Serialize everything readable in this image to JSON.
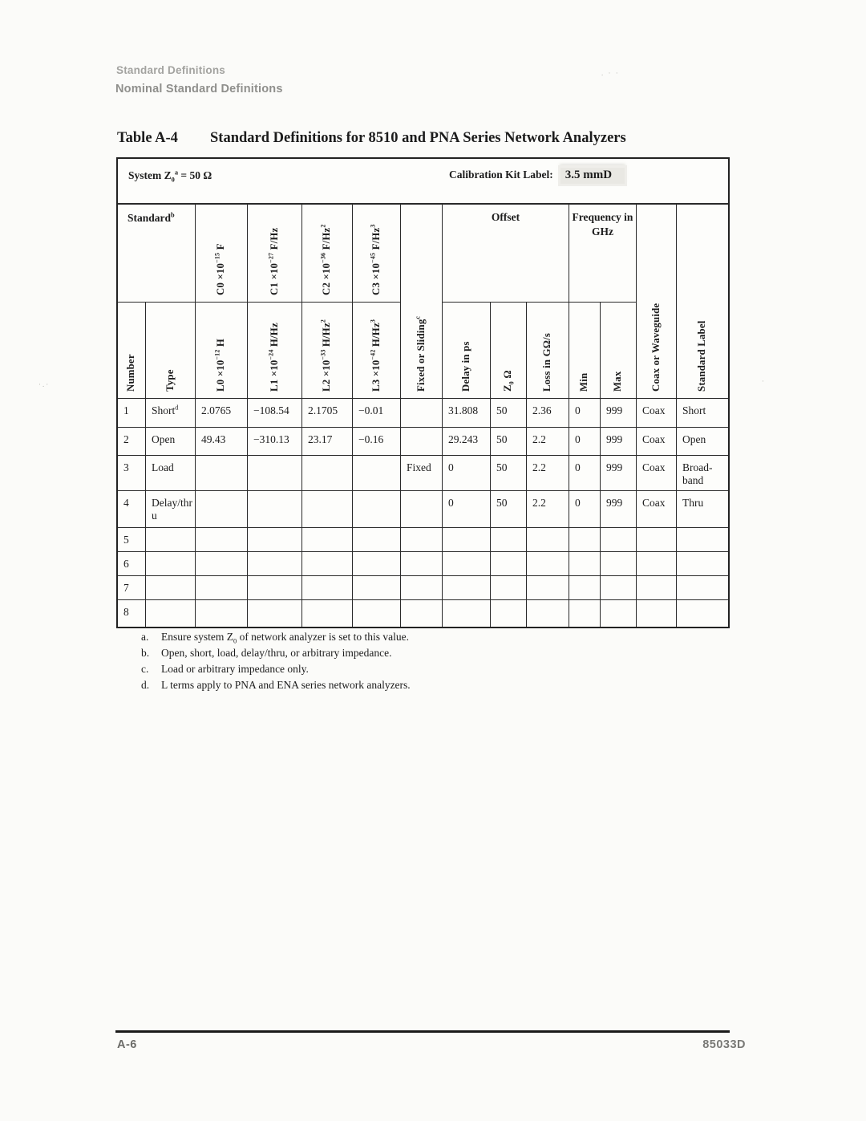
{
  "page": {
    "header_line1": "Standard Definitions",
    "header_line2": "Nominal Standard Definitions",
    "table_number": "Table A-4",
    "table_title": "Standard Definitions for 8510 and PNA Series Network Analyzers",
    "footer_left": "A-6",
    "footer_right": "85033D"
  },
  "table": {
    "system_z0": "System Z_{0}^{a} = 50 Ω",
    "calibration_kit_label": "Calibration Kit Label:",
    "calibration_kit_value": "3.5 mmD",
    "header": {
      "standard": "Standard^{b}",
      "number": "Number",
      "type": "Type",
      "c_terms": [
        "C0 ×10^{−15} F",
        "C1 ×10^{−27} F/Hz",
        "C2 ×10^{−36} F/Hz^{2}",
        "C3 ×10^{−45} F/Hz^{3}"
      ],
      "l_terms": [
        "L0 ×10^{−12} H",
        "L1 ×10^{−24} H/Hz",
        "L2 ×10^{−33} H/Hz^{2}",
        "L3 ×10^{−42} H/Hz^{3}"
      ],
      "fixed_or_sliding": "Fixed or Sliding^{c}",
      "offset_group": "Offset",
      "offset_columns": [
        "Delay in ps",
        "Z_{0} Ω",
        "Loss in GΩ/s"
      ],
      "frequency_group": "Frequency in GHz",
      "frequency_columns": [
        "Min",
        "Max"
      ],
      "coax_or_waveguide": "Coax or Waveguide",
      "standard_label": "Standard Label"
    },
    "rows": [
      [
        "1",
        "Short^{d}",
        "2.0765",
        "−108.54",
        "2.1705",
        "−0.01",
        "",
        "31.808",
        "50",
        "2.36",
        "0",
        "999",
        "Coax",
        "Short"
      ],
      [
        "2",
        "Open",
        "49.43",
        "−310.13",
        "23.17",
        "−0.16",
        "",
        "29.243",
        "50",
        "2.2",
        "0",
        "999",
        "Coax",
        "Open"
      ],
      [
        "3",
        "Load",
        "",
        "",
        "",
        "",
        "Fixed",
        "0",
        "50",
        "2.2",
        "0",
        "999",
        "Coax",
        "Broad-band"
      ],
      [
        "4",
        "Delay/thru",
        "",
        "",
        "",
        "",
        "",
        "0",
        "50",
        "2.2",
        "0",
        "999",
        "Coax",
        "Thru"
      ],
      [
        "5",
        "",
        "",
        "",
        "",
        "",
        "",
        "",
        "",
        "",
        "",
        "",
        "",
        ""
      ],
      [
        "6",
        "",
        "",
        "",
        "",
        "",
        "",
        "",
        "",
        "",
        "",
        "",
        "",
        ""
      ],
      [
        "7",
        "",
        "",
        "",
        "",
        "",
        "",
        "",
        "",
        "",
        "",
        "",
        "",
        ""
      ],
      [
        "8",
        "",
        "",
        "",
        "",
        "",
        "",
        "",
        "",
        "",
        "",
        "",
        "",
        ""
      ]
    ]
  },
  "footnotes": [
    {
      "letter": "a.",
      "text": "Ensure system Z_{0} of network analyzer is set to this value."
    },
    {
      "letter": "b.",
      "text": "Open, short, load, delay/thru, or arbitrary impedance."
    },
    {
      "letter": "c.",
      "text": "Load or arbitrary impedance only."
    },
    {
      "letter": "d.",
      "text": "L terms apply to PNA and ENA series network analyzers."
    }
  ]
}
